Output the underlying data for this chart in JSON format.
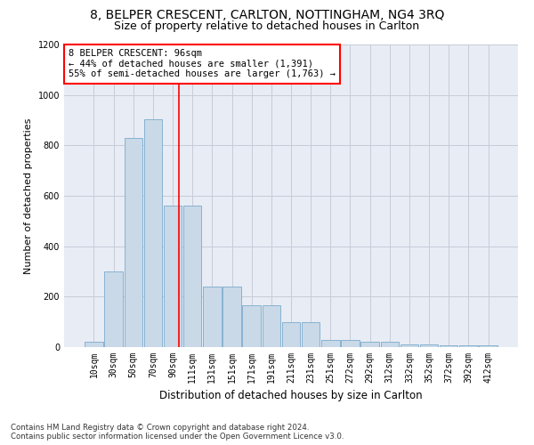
{
  "title": "8, BELPER CRESCENT, CARLTON, NOTTINGHAM, NG4 3RQ",
  "subtitle": "Size of property relative to detached houses in Carlton",
  "xlabel": "Distribution of detached houses by size in Carlton",
  "ylabel": "Number of detached properties",
  "categories": [
    "10sqm",
    "30sqm",
    "50sqm",
    "70sqm",
    "90sqm",
    "111sqm",
    "131sqm",
    "151sqm",
    "171sqm",
    "191sqm",
    "211sqm",
    "231sqm",
    "251sqm",
    "272sqm",
    "292sqm",
    "312sqm",
    "332sqm",
    "352sqm",
    "372sqm",
    "392sqm",
    "412sqm"
  ],
  "bar_heights": [
    20,
    300,
    830,
    905,
    560,
    560,
    240,
    240,
    165,
    165,
    100,
    100,
    30,
    30,
    20,
    20,
    10,
    10,
    8,
    8,
    8
  ],
  "bar_color": "#c9d9e8",
  "bar_edge_color": "#7aabcc",
  "vline_color": "red",
  "vline_pos": 4.3,
  "annotation_text": "8 BELPER CRESCENT: 96sqm\n← 44% of detached houses are smaller (1,391)\n55% of semi-detached houses are larger (1,763) →",
  "annotation_box_color": "white",
  "annotation_box_edge": "red",
  "ylim": [
    0,
    1200
  ],
  "yticks": [
    0,
    200,
    400,
    600,
    800,
    1000,
    1200
  ],
  "grid_color": "#c8ccd8",
  "bg_color": "#e8ecf4",
  "footnote": "Contains HM Land Registry data © Crown copyright and database right 2024.\nContains public sector information licensed under the Open Government Licence v3.0.",
  "title_fontsize": 10,
  "subtitle_fontsize": 9,
  "xlabel_fontsize": 8.5,
  "ylabel_fontsize": 8,
  "tick_fontsize": 7,
  "annot_fontsize": 7.5
}
